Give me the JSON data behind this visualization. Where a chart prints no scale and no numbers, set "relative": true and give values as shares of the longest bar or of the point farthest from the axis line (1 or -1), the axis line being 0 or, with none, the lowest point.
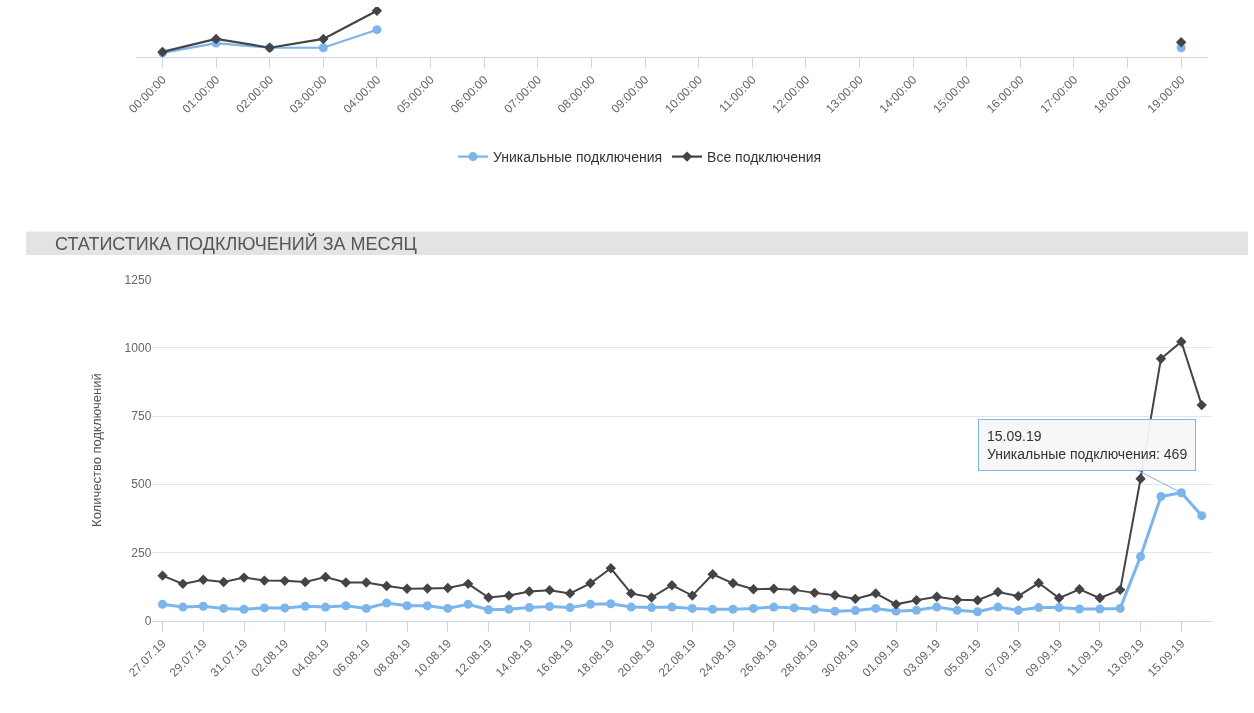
{
  "chart_data": [
    {
      "type": "line",
      "relative": true,
      "legend": "bottom",
      "categories": [
        "00:00:00",
        "01:00:00",
        "02:00:00",
        "03:00:00",
        "04:00:00",
        "05:00:00",
        "06:00:00",
        "07:00:00",
        "08:00:00",
        "09:00:00",
        "10:00:00",
        "11:00:00",
        "12:00:00",
        "13:00:00",
        "14:00:00",
        "15:00:00",
        "16:00:00",
        "17:00:00",
        "18:00:00",
        "19:00:00"
      ],
      "series": [
        {
          "name": "Уникальные подключения",
          "color": "#7cb5ec",
          "marker": "circle",
          "values": [
            0.09,
            0.3,
            0.2,
            0.2,
            0.59,
            null,
            null,
            null,
            null,
            null,
            null,
            null,
            null,
            null,
            null,
            null,
            null,
            null,
            null,
            0.2
          ]
        },
        {
          "name": "Все подключения",
          "color": "#434348",
          "marker": "diamond",
          "values": [
            0.11,
            0.39,
            0.2,
            0.39,
            1,
            null,
            null,
            null,
            null,
            null,
            null,
            null,
            null,
            null,
            null,
            null,
            null,
            null,
            null,
            0.32
          ]
        }
      ]
    },
    {
      "type": "line",
      "title": "СТАТИСТИКА ПОДКЛЮЧЕНИЙ ЗА МЕСЯЦ",
      "ylabel": "Количество подключений",
      "ylim": [
        0,
        1250
      ],
      "yticks": [
        0,
        250,
        500,
        750,
        1000,
        1250
      ],
      "grid": "y",
      "categories": [
        "27.07.19",
        null,
        "29.07.19",
        null,
        "31.07.19",
        null,
        "02.08.19",
        null,
        "04.08.19",
        null,
        "06.08.19",
        null,
        "08.08.19",
        null,
        "10.08.19",
        null,
        "12.08.19",
        null,
        "14.08.19",
        null,
        "16.08.19",
        null,
        "18.08.19",
        null,
        "20.08.19",
        null,
        "22.08.19",
        null,
        "24.08.19",
        null,
        "26.08.19",
        null,
        "28.08.19",
        null,
        "30.08.19",
        null,
        "01.09.19",
        null,
        "03.09.19",
        null,
        "05.09.19",
        null,
        "07.09.19",
        null,
        "09.09.19",
        null,
        "11.09.19",
        null,
        "13.09.19",
        null,
        "15.09.19",
        null
      ],
      "series": [
        {
          "color": "#7cb5ec",
          "marker": "circle",
          "values": [
            60,
            50,
            53,
            45,
            42,
            47,
            47,
            53,
            50,
            55,
            45,
            65,
            55,
            55,
            45,
            60,
            40,
            42,
            48,
            52,
            48,
            60,
            62,
            50,
            48,
            50,
            45,
            42,
            42,
            45,
            50,
            47,
            42,
            35,
            37,
            45,
            35,
            38,
            50,
            38,
            33,
            50,
            38,
            48,
            48,
            43,
            43,
            45,
            235,
            455,
            469,
            385
          ]
        },
        {
          "color": "#434348",
          "marker": "diamond",
          "values": [
            165,
            135,
            150,
            142,
            158,
            147,
            146,
            142,
            160,
            140,
            140,
            127,
            117,
            118,
            120,
            135,
            85,
            92,
            107,
            112,
            100,
            137,
            192,
            100,
            85,
            130,
            92,
            170,
            137,
            115,
            117,
            113,
            102,
            93,
            80,
            100,
            60,
            75,
            88,
            77,
            75,
            105,
            90,
            138,
            83,
            115,
            83,
            113,
            520,
            960,
            1022,
            790
          ]
        }
      ],
      "annotations": [
        {
          "text": "15.09.19\nУникальные подключения: 469",
          "x": "15.09.19",
          "y": 469
        }
      ]
    }
  ]
}
